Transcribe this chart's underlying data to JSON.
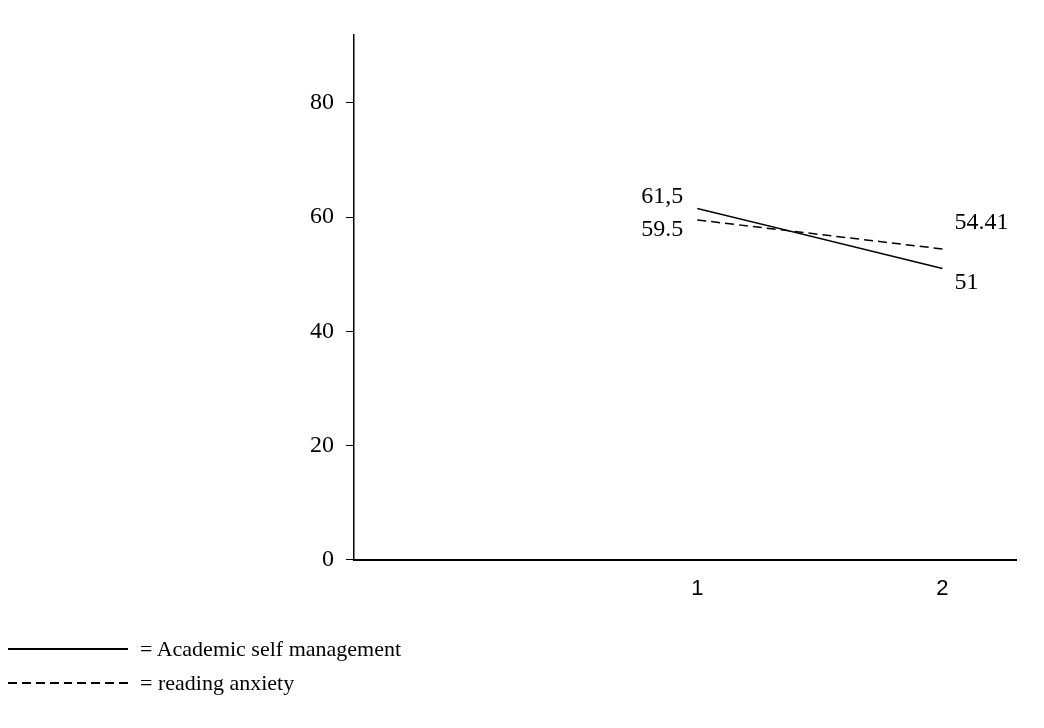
{
  "chart_data": {
    "type": "line",
    "x": [
      1,
      2
    ],
    "xlim": [
      -0.4,
      2.3
    ],
    "xticks": [
      1,
      2
    ],
    "ylim": [
      0,
      92
    ],
    "yticks": [
      0,
      20,
      40,
      60,
      80
    ],
    "grid": false,
    "legend": "bottom",
    "marker": "none",
    "series": [
      {
        "name": "= Academic self management",
        "color": "#000000",
        "line_style": "solid",
        "values": [
          61.5,
          51
        ],
        "value_labels": [
          "61,5",
          "51"
        ]
      },
      {
        "name": "= reading anxiety",
        "color": "#000000",
        "line_style": "dashed",
        "values": [
          59.5,
          54.41
        ],
        "value_labels": [
          "59.5",
          "54.41"
        ]
      }
    ]
  }
}
